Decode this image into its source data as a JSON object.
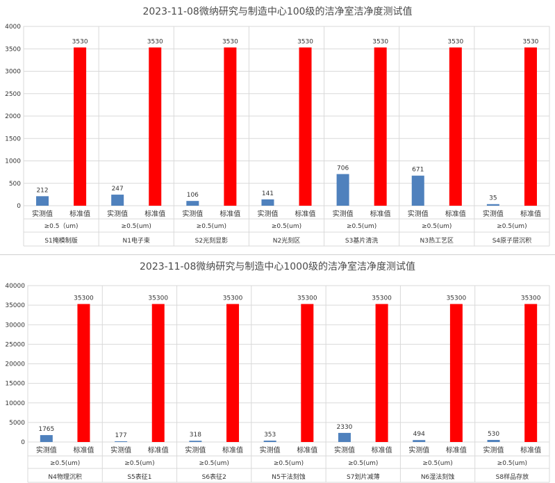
{
  "chart_data": [
    {
      "type": "bar",
      "title": "2023-11-08微纳研究与制造中心100级的洁净室洁净度测试值",
      "ylim": [
        0,
        4000
      ],
      "yticks": [
        "0",
        "500",
        "1000",
        "1500",
        "2000",
        "2500",
        "3000",
        "3500",
        "4000"
      ],
      "groups": [
        {
          "name": "S1掩模制版",
          "sub": "≥0.5（um)",
          "actual": 212,
          "standard": 3530
        },
        {
          "name": "N1电子束",
          "sub": "≥0.5(um)",
          "actual": 247,
          "standard": 3530
        },
        {
          "name": "S2光刻显影",
          "sub": "≥0.5(um)",
          "actual": 106,
          "standard": 3530
        },
        {
          "name": "N2光刻区",
          "sub": "≥0.5(um)",
          "actual": 141,
          "standard": 3530
        },
        {
          "name": "S3基片清洗",
          "sub": "≥0.5(um)",
          "actual": 706,
          "standard": 3530
        },
        {
          "name": "N3热工艺区",
          "sub": "≥0.5(um)",
          "actual": 671,
          "standard": 3530
        },
        {
          "name": "S4原子层沉积",
          "sub": "≥0.5(um)",
          "actual": 35,
          "standard": 3530
        }
      ],
      "series_labels": [
        "实测值",
        "标准值"
      ],
      "colors": {
        "actual": "#4f81bd",
        "standard": "#ff0000"
      },
      "grid": true
    },
    {
      "type": "bar",
      "title": "2023-11-08微纳研究与制造中心1000级的洁净室洁净度测试值",
      "ylim": [
        0,
        40000
      ],
      "yticks": [
        "0",
        "5000",
        "10000",
        "15000",
        "20000",
        "25000",
        "30000",
        "35000",
        "40000"
      ],
      "groups": [
        {
          "name": "N4物理沉积",
          "sub": "≥0.5(um)",
          "actual": 1765,
          "standard": 35300
        },
        {
          "name": "S5表征1",
          "sub": "≥0.5(um)",
          "actual": 177,
          "standard": 35300
        },
        {
          "name": "S6表征2",
          "sub": "≥0.5(um)",
          "actual": 318,
          "standard": 35300
        },
        {
          "name": "N5干法刻蚀",
          "sub": "≥0.5(um)",
          "actual": 353,
          "standard": 35300
        },
        {
          "name": "S7划片减薄",
          "sub": "≥0.5(um)",
          "actual": 2330,
          "standard": 35300
        },
        {
          "name": "N6湿法刻蚀",
          "sub": "≥0.5(um)",
          "actual": 494,
          "standard": 35300
        },
        {
          "name": "S8样品存放",
          "sub": "≥0.5(um)",
          "actual": 530,
          "standard": 35300
        }
      ],
      "series_labels": [
        "实测值",
        "标准值"
      ],
      "colors": {
        "actual": "#4f81bd",
        "standard": "#ff0000"
      },
      "grid": true
    }
  ]
}
